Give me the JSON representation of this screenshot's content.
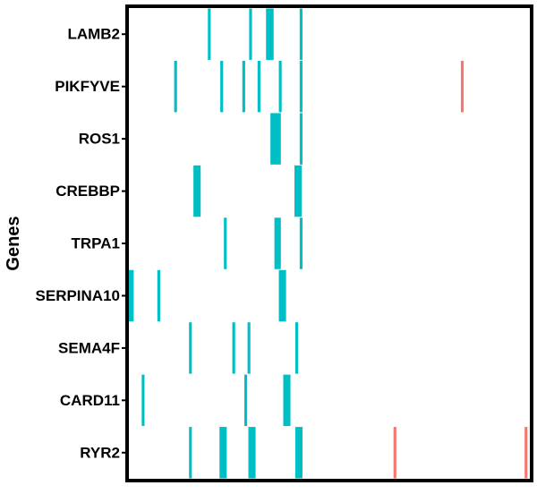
{
  "chart_data": {
    "type": "heatmap",
    "title": "",
    "xlabel": "",
    "ylabel": "Genes",
    "categories": [
      "LAMB2",
      "PIKFYVE",
      "ROS1",
      "CREBBP",
      "TRPA1",
      "SERPINA10",
      "SEMA4F",
      "CARD11",
      "RYR2"
    ],
    "xlim": [
      0,
      100
    ],
    "x_tick_labels_shown": false,
    "grid": false,
    "legend": "none",
    "colors": {
      "teal": "#00BFC4",
      "salmon": "#F8766D",
      "frame": "#000000",
      "background": "#FFFFFF"
    },
    "series": [
      {
        "color": "#00BFC4",
        "segments": [
          {
            "gene": "LAMB2",
            "x": [
              19.7,
              20.4
            ]
          },
          {
            "gene": "LAMB2",
            "x": [
              30.0,
              30.7
            ]
          },
          {
            "gene": "LAMB2",
            "x": [
              34.2,
              36.1
            ]
          },
          {
            "gene": "LAMB2",
            "x": [
              42.6,
              43.3
            ]
          },
          {
            "gene": "PIKFYVE",
            "x": [
              11.3,
              12.0
            ]
          },
          {
            "gene": "PIKFYVE",
            "x": [
              22.8,
              23.5
            ]
          },
          {
            "gene": "PIKFYVE",
            "x": [
              28.3,
              29.0
            ]
          },
          {
            "gene": "PIKFYVE",
            "x": [
              32.1,
              32.8
            ]
          },
          {
            "gene": "PIKFYVE",
            "x": [
              37.4,
              38.1
            ]
          },
          {
            "gene": "PIKFYVE",
            "x": [
              42.6,
              43.3
            ]
          },
          {
            "gene": "ROS1",
            "x": [
              35.3,
              37.9
            ]
          },
          {
            "gene": "ROS1",
            "x": [
              42.6,
              43.3
            ]
          },
          {
            "gene": "CREBBP",
            "x": [
              16.1,
              17.9
            ]
          },
          {
            "gene": "CREBBP",
            "x": [
              41.3,
              43.1
            ]
          },
          {
            "gene": "TRPA1",
            "x": [
              23.7,
              24.4
            ]
          },
          {
            "gene": "TRPA1",
            "x": [
              36.3,
              37.9
            ]
          },
          {
            "gene": "TRPA1",
            "x": [
              42.6,
              43.3
            ]
          },
          {
            "gene": "SERPINA10",
            "x": [
              0.0,
              1.2
            ]
          },
          {
            "gene": "SERPINA10",
            "x": [
              7.1,
              7.8
            ]
          },
          {
            "gene": "SERPINA10",
            "x": [
              37.4,
              39.2
            ]
          },
          {
            "gene": "SEMA4F",
            "x": [
              15.0,
              15.7
            ]
          },
          {
            "gene": "SEMA4F",
            "x": [
              25.8,
              26.5
            ]
          },
          {
            "gene": "SEMA4F",
            "x": [
              29.6,
              30.3
            ]
          },
          {
            "gene": "SEMA4F",
            "x": [
              41.5,
              42.2
            ]
          },
          {
            "gene": "CARD11",
            "x": [
              3.2,
              3.9
            ]
          },
          {
            "gene": "CARD11",
            "x": [
              28.8,
              29.5
            ]
          },
          {
            "gene": "CARD11",
            "x": [
              38.5,
              40.3
            ]
          },
          {
            "gene": "RYR2",
            "x": [
              15.0,
              15.7
            ]
          },
          {
            "gene": "RYR2",
            "x": [
              22.6,
              24.4
            ]
          },
          {
            "gene": "RYR2",
            "x": [
              29.8,
              31.6
            ]
          },
          {
            "gene": "RYR2",
            "x": [
              41.5,
              43.3
            ]
          }
        ]
      },
      {
        "color": "#F8766D",
        "segments": [
          {
            "gene": "PIKFYVE",
            "x": [
              82.8,
              83.5
            ]
          },
          {
            "gene": "RYR2",
            "x": [
              66.0,
              66.7
            ]
          },
          {
            "gene": "RYR2",
            "x": [
              98.7,
              99.4
            ]
          }
        ]
      }
    ]
  }
}
